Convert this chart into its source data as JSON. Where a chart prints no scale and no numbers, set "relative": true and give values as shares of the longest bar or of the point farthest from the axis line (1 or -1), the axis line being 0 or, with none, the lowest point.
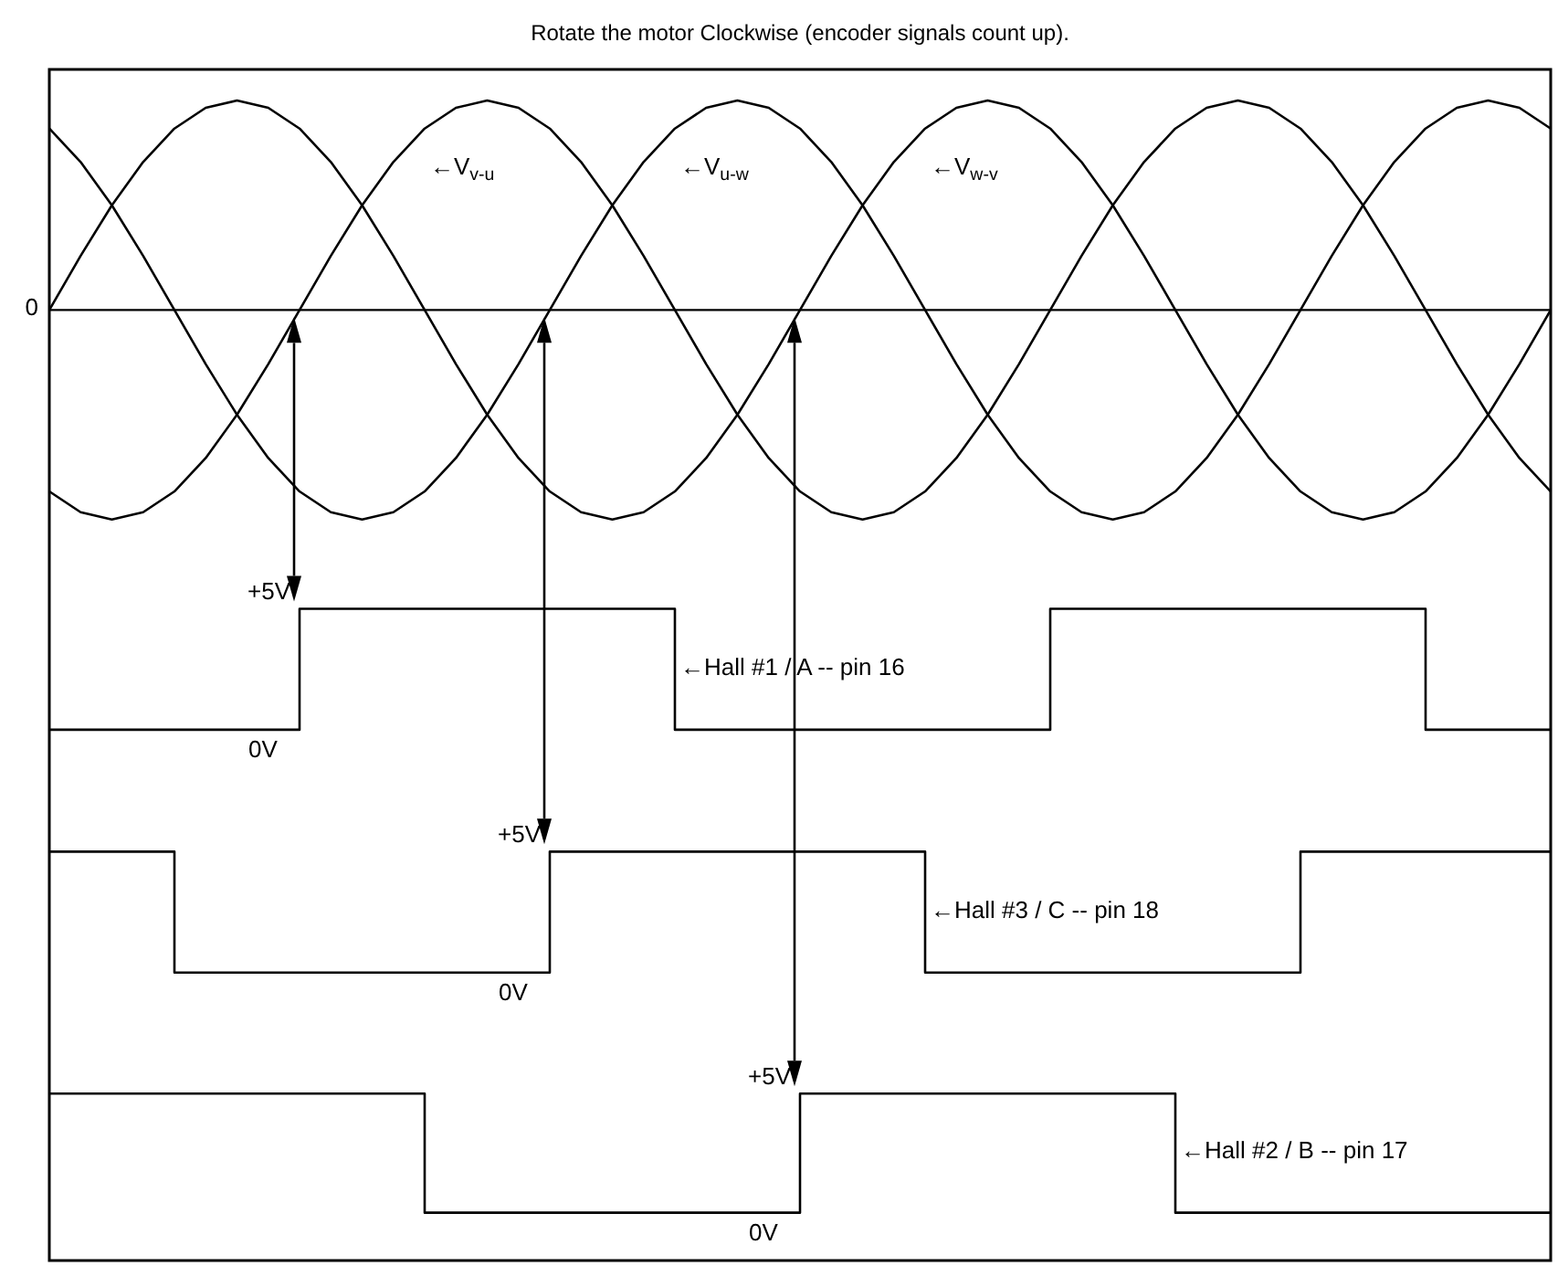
{
  "chart_data": {
    "type": "line",
    "title": "Rotate the motor Clockwise (encoder signals count up).",
    "relative": true,
    "legend": false,
    "grid": false,
    "categories": [
      null,
      null,
      null,
      null,
      null,
      null,
      null,
      null,
      null,
      null,
      null,
      null,
      null,
      null,
      null,
      null,
      null,
      null,
      null,
      null,
      null,
      null,
      null,
      null,
      null,
      null,
      null,
      null,
      null,
      null,
      null,
      null,
      null,
      null,
      null,
      null,
      null,
      null,
      null,
      null,
      null,
      null,
      null,
      null,
      null,
      null,
      null,
      null,
      null
    ],
    "series": [
      {
        "name": "←V$_{w-v}$",
        "color": "#000000",
        "values": [
          0,
          0.06,
          0.116,
          0.164,
          0.201,
          0.224,
          0.232,
          0.224,
          0.201,
          0.164,
          0.116,
          0.06,
          0,
          -0.06,
          -0.116,
          -0.164,
          -0.201,
          -0.224,
          -0.232,
          -0.224,
          -0.201,
          -0.164,
          -0.116,
          -0.06,
          0,
          0.06,
          0.116,
          0.164,
          0.201,
          0.224,
          0.232,
          0.224,
          0.201,
          0.164,
          0.116,
          0.06,
          0,
          -0.06,
          -0.116,
          -0.164,
          -0.201,
          -0.224,
          -0.232,
          -0.224,
          -0.201,
          -0.164,
          -0.116,
          -0.06,
          0
        ]
      },
      {
        "name": "←V$_{v-u}$",
        "color": "#000000",
        "values": [
          -0.201,
          -0.224,
          -0.232,
          -0.224,
          -0.201,
          -0.164,
          -0.116,
          -0.06,
          0,
          0.06,
          0.116,
          0.164,
          0.201,
          0.224,
          0.232,
          0.224,
          0.201,
          0.164,
          0.116,
          0.06,
          0,
          -0.06,
          -0.116,
          -0.164,
          -0.201,
          -0.224,
          -0.232,
          -0.224,
          -0.201,
          -0.164,
          -0.116,
          -0.06,
          0,
          0.06,
          0.116,
          0.164,
          0.201,
          0.224,
          0.232,
          0.224,
          0.201,
          0.164,
          0.116,
          0.06,
          0,
          -0.06,
          -0.116,
          -0.164,
          -0.201
        ]
      },
      {
        "name": "←V$_{u-w}$",
        "color": "#000000",
        "values": [
          0.201,
          0.164,
          0.116,
          0.06,
          0,
          -0.06,
          -0.116,
          -0.164,
          -0.201,
          -0.224,
          -0.232,
          -0.224,
          -0.201,
          -0.164,
          -0.116,
          -0.06,
          0,
          0.06,
          0.116,
          0.164,
          0.201,
          0.224,
          0.232,
          0.224,
          0.201,
          0.164,
          0.116,
          0.06,
          0,
          -0.06,
          -0.116,
          -0.164,
          -0.201,
          -0.224,
          -0.232,
          -0.224,
          -0.201,
          -0.164,
          -0.116,
          -0.06,
          0,
          0.06,
          0.116,
          0.164,
          0.201,
          0.224,
          0.232,
          0.224,
          0.201
        ]
      },
      {
        "type": "step",
        "name": "←Hall #1 / A -- pin 16",
        "color": "#000000",
        "values": [
          -0.465,
          -0.465,
          -0.465,
          -0.465,
          -0.465,
          -0.465,
          -0.465,
          -0.465,
          -0.331,
          -0.331,
          -0.331,
          -0.331,
          -0.331,
          -0.331,
          -0.331,
          -0.331,
          -0.331,
          -0.331,
          -0.331,
          -0.331,
          -0.465,
          -0.465,
          -0.465,
          -0.465,
          -0.465,
          -0.465,
          -0.465,
          -0.465,
          -0.465,
          -0.465,
          -0.465,
          -0.465,
          -0.331,
          -0.331,
          -0.331,
          -0.331,
          -0.331,
          -0.331,
          -0.331,
          -0.331,
          -0.331,
          -0.331,
          -0.331,
          -0.331,
          -0.465,
          -0.465,
          -0.465,
          -0.465,
          -0.465
        ]
      },
      {
        "type": "step",
        "name": "←Hall #3 / C -- pin 18",
        "color": "#000000",
        "values": [
          -0.6,
          -0.6,
          -0.6,
          -0.6,
          -0.734,
          -0.734,
          -0.734,
          -0.734,
          -0.734,
          -0.734,
          -0.734,
          -0.734,
          -0.734,
          -0.734,
          -0.734,
          -0.734,
          -0.6,
          -0.6,
          -0.6,
          -0.6,
          -0.6,
          -0.6,
          -0.6,
          -0.6,
          -0.6,
          -0.6,
          -0.6,
          -0.6,
          -0.734,
          -0.734,
          -0.734,
          -0.734,
          -0.734,
          -0.734,
          -0.734,
          -0.734,
          -0.734,
          -0.734,
          -0.734,
          -0.734,
          -0.6,
          -0.6,
          -0.6,
          -0.6,
          -0.6,
          -0.6,
          -0.6,
          -0.6,
          -0.6
        ]
      },
      {
        "type": "step",
        "name": "←Hall #2 / B -- pin 17",
        "color": "#000000",
        "values": [
          -0.868,
          -0.868,
          -0.868,
          -0.868,
          -0.868,
          -0.868,
          -0.868,
          -0.868,
          -0.868,
          -0.868,
          -0.868,
          -0.868,
          -1,
          -1,
          -1,
          -1,
          -1,
          -1,
          -1,
          -1,
          -1,
          -1,
          -1,
          -1,
          -0.868,
          -0.868,
          -0.868,
          -0.868,
          -0.868,
          -0.868,
          -0.868,
          -0.868,
          -0.868,
          -0.868,
          -0.868,
          -0.868,
          -1,
          -1,
          -1,
          -1,
          -1,
          -1,
          -1,
          -1,
          -1,
          -1,
          -1,
          -1,
          -1
        ]
      }
    ],
    "annotations": [
      "0",
      "+5V",
      "0V",
      "+5V",
      "0V",
      "+5V",
      "0V"
    ]
  }
}
